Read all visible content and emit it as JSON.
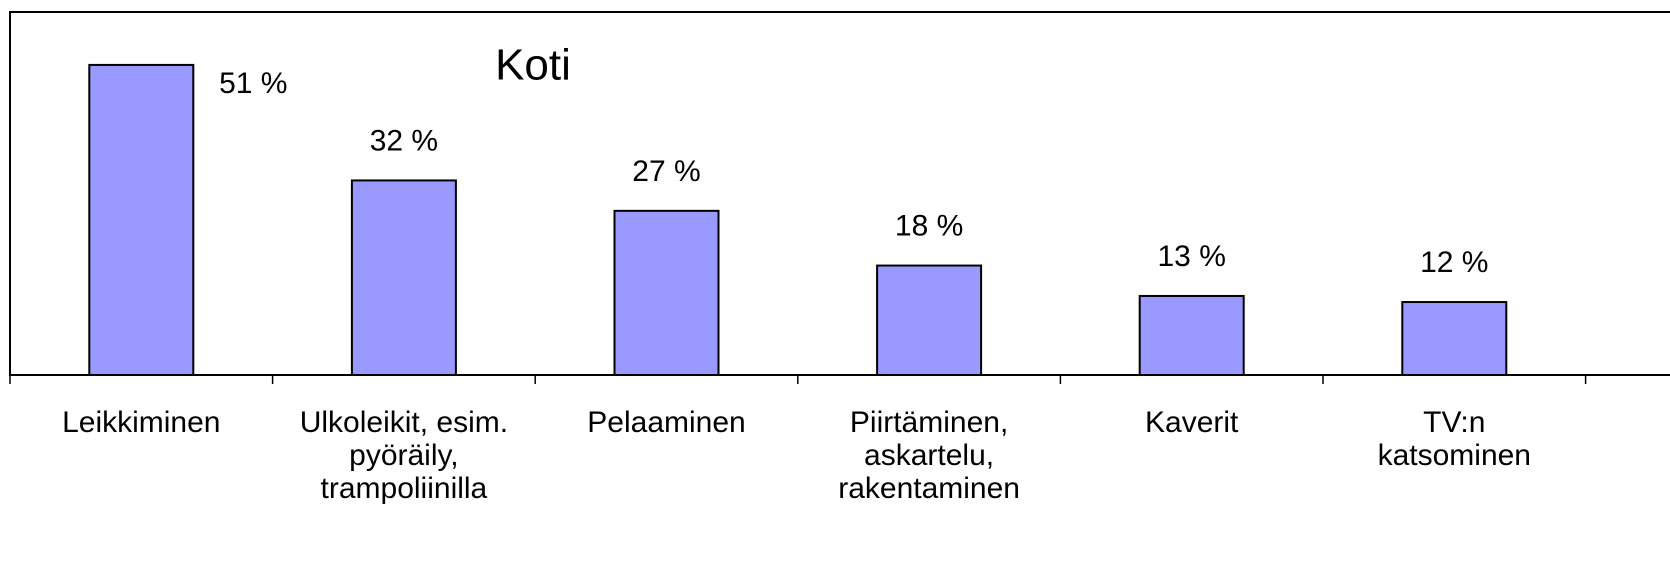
{
  "chart_data": {
    "type": "bar",
    "title": "Koti",
    "categories": [
      "Leikkiminen",
      "Ulkoleikit, esim.\npyöräily,\ntrampoliinilla",
      "Pelaaminen",
      "Piirtäminen,\naskartelu,\nrakentaminen",
      "Kaverit",
      "TV:n\nkatsominen"
    ],
    "values": [
      51,
      32,
      27,
      18,
      13,
      12
    ],
    "value_labels": [
      "51 %",
      "32 %",
      "27 %",
      "18 %",
      "13 %",
      "12 %"
    ],
    "color": "#9999ff"
  }
}
